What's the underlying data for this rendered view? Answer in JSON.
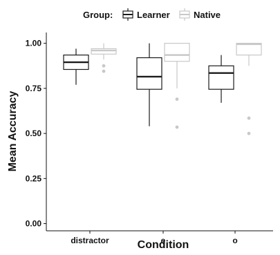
{
  "chart_data": {
    "type": "boxplot",
    "xlabel": "Condition",
    "ylabel": "Mean Accuracy",
    "ylim": [
      -0.04,
      1.06
    ],
    "yticks": [
      0.0,
      0.25,
      0.5,
      0.75,
      1.0
    ],
    "ytick_labels": [
      "0.00",
      "0.25",
      "0.50",
      "0.75",
      "1.00"
    ],
    "categories": [
      "distractor",
      "e",
      "o"
    ],
    "legend": {
      "title": "Group:",
      "position": "top"
    },
    "series": [
      {
        "name": "Learner",
        "color": "#1a1a1a",
        "boxes": [
          {
            "whisker_low": 0.77,
            "q1": 0.855,
            "median": 0.895,
            "q3": 0.935,
            "whisker_high": 0.97,
            "outliers": []
          },
          {
            "whisker_low": 0.54,
            "q1": 0.745,
            "median": 0.815,
            "q3": 0.92,
            "whisker_high": 1.0,
            "outliers": []
          },
          {
            "whisker_low": 0.67,
            "q1": 0.745,
            "median": 0.835,
            "q3": 0.875,
            "whisker_high": 0.935,
            "outliers": []
          }
        ]
      },
      {
        "name": "Native",
        "color": "#c8c8c8",
        "boxes": [
          {
            "whisker_low": 0.91,
            "q1": 0.94,
            "median": 0.96,
            "q3": 0.97,
            "whisker_high": 1.0,
            "outliers": [
              0.875,
              0.845
            ]
          },
          {
            "whisker_low": 0.75,
            "q1": 0.9,
            "median": 0.935,
            "q3": 1.0,
            "whisker_high": 1.0,
            "outliers": [
              0.69,
              0.535
            ]
          },
          {
            "whisker_low": 0.875,
            "q1": 0.935,
            "median": 0.995,
            "q3": 1.0,
            "whisker_high": 1.0,
            "outliers": [
              0.585,
              0.5
            ]
          }
        ]
      }
    ]
  }
}
